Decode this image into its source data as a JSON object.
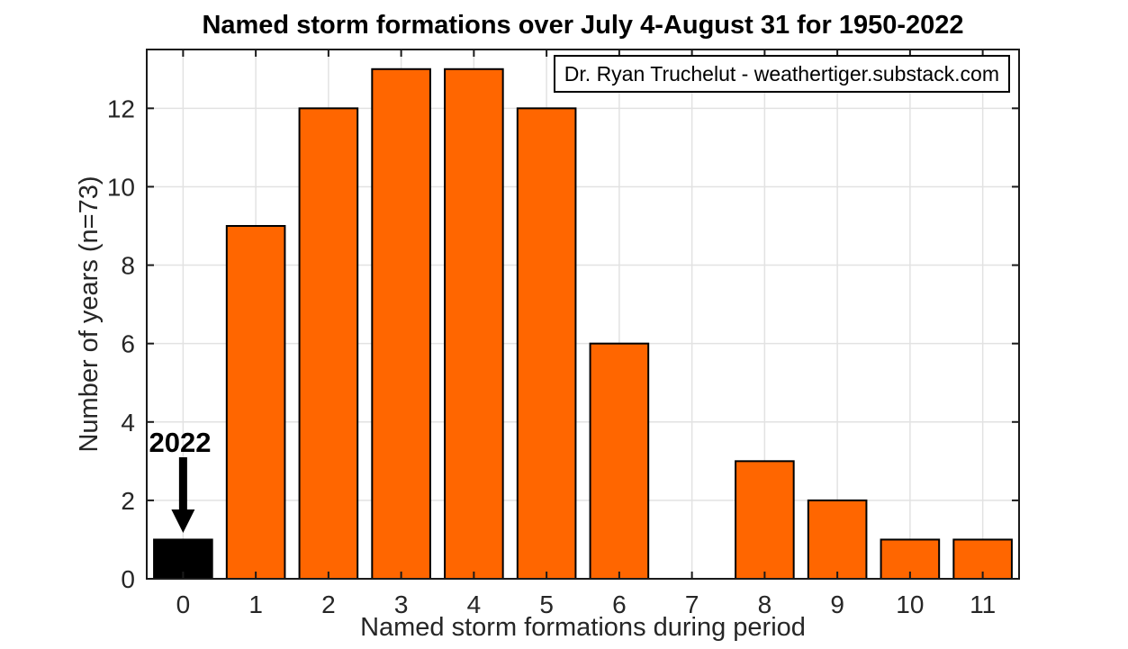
{
  "chart_data": {
    "type": "bar",
    "title": "Named storm formations over July 4-August 31 for 1950-2022",
    "xlabel": "Named storm formations during period",
    "ylabel": "Number of years (n=73)",
    "annotation": "Dr. Ryan Truchelut - weathertiger.substack.com",
    "categories": [
      0,
      1,
      2,
      3,
      4,
      5,
      6,
      7,
      8,
      9,
      10,
      11
    ],
    "values": [
      1,
      9,
      12,
      13,
      13,
      12,
      6,
      0,
      3,
      2,
      1,
      1
    ],
    "n_total": 73,
    "highlight": {
      "category": 0,
      "label": "2022",
      "bar_color": "#000000"
    },
    "bar_color": "#FF6600",
    "bar_edge_color": "#000000",
    "bar_width_units": 0.8,
    "xlim": [
      -0.5,
      11.5
    ],
    "ylim": [
      0,
      13.5
    ],
    "yticks": [
      0,
      2,
      4,
      6,
      8,
      10,
      12
    ],
    "grid": true,
    "grid_color": "#E2E2E2",
    "axis_color": "#1a1a1a",
    "tick_label_color": "#262626",
    "legend": null,
    "background_color": "#FFFFFF"
  }
}
